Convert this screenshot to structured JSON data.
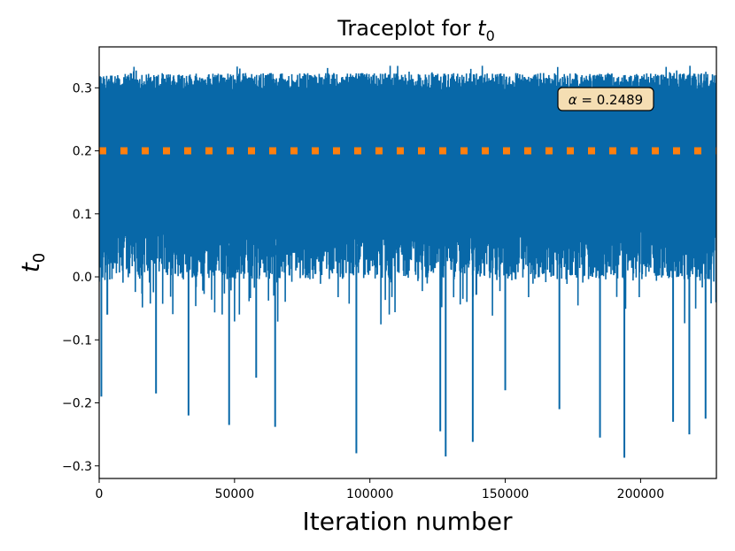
{
  "chart_data": {
    "type": "line",
    "title_prefix": "Traceplot for ",
    "title_symbol": "t",
    "title_subscript": "0",
    "xlabel": "Iteration number",
    "ylabel_symbol": "t",
    "ylabel_subscript": "0",
    "xlim": [
      0,
      228000
    ],
    "ylim": [
      -0.32,
      0.365
    ],
    "xticks": [
      0,
      50000,
      100000,
      150000,
      200000
    ],
    "xtick_labels": [
      "0",
      "50000",
      "100000",
      "150000",
      "200000"
    ],
    "yticks": [
      -0.3,
      -0.2,
      -0.1,
      0.0,
      0.1,
      0.2,
      0.3
    ],
    "ytick_labels": [
      "−0.3",
      "−0.2",
      "−0.1",
      "0.0",
      "0.1",
      "0.2",
      "0.3"
    ],
    "series": [
      {
        "name": "trace",
        "color": "#0868a8",
        "band_upper_typical": 0.31,
        "band_lower_typical": 0.02,
        "band_upper_max": 0.335,
        "notable_low_spikes": [
          [
            800,
            -0.19
          ],
          [
            3000,
            -0.06
          ],
          [
            21000,
            -0.185
          ],
          [
            33000,
            -0.22
          ],
          [
            48000,
            -0.235
          ],
          [
            58000,
            -0.16
          ],
          [
            65000,
            -0.238
          ],
          [
            95000,
            -0.28
          ],
          [
            126000,
            -0.245
          ],
          [
            128000,
            -0.285
          ],
          [
            138000,
            -0.262
          ],
          [
            150000,
            -0.18
          ],
          [
            170000,
            -0.21
          ],
          [
            185000,
            -0.255
          ],
          [
            194000,
            -0.287
          ],
          [
            212000,
            -0.23
          ],
          [
            218000,
            -0.25
          ],
          [
            224000,
            -0.225
          ]
        ]
      },
      {
        "name": "true value",
        "color": "#ff7f0e",
        "style": "dotted",
        "y": 0.2
      }
    ],
    "annotation": {
      "symbol": "α",
      "text": " = 0.2489",
      "x": 191000,
      "y": 0.285,
      "box_color": "#f5deb3"
    }
  }
}
